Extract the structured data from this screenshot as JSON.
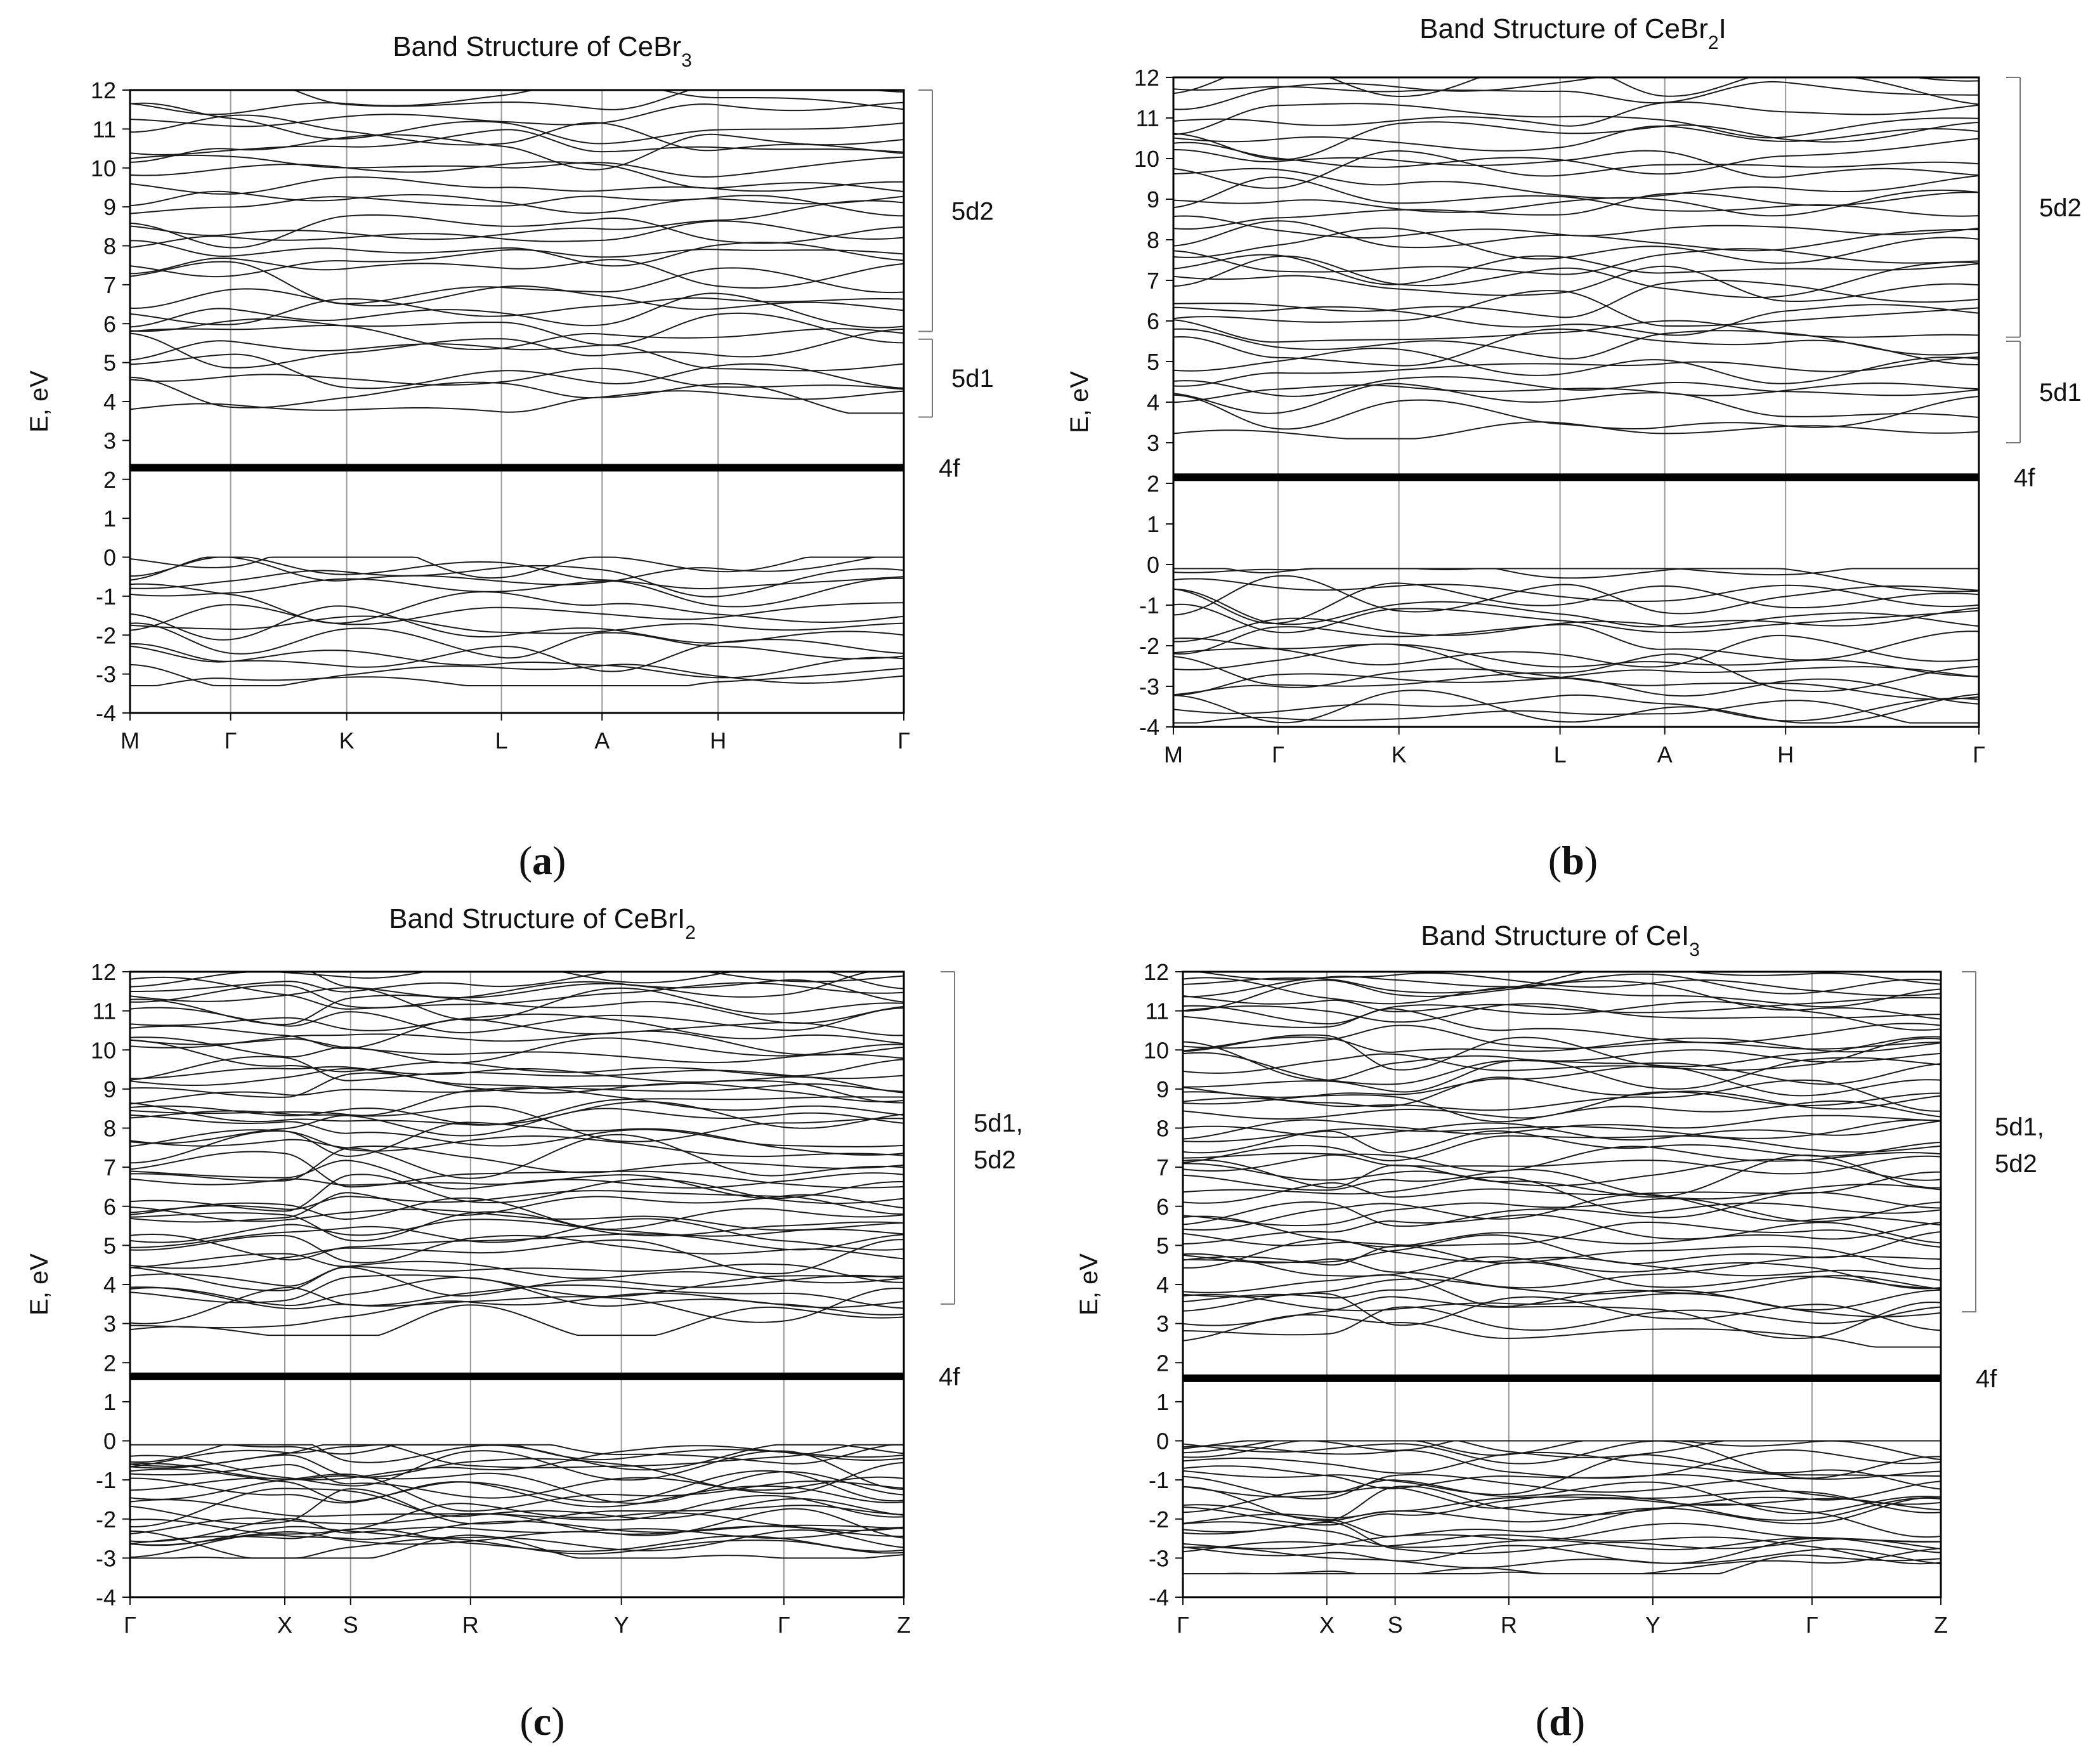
{
  "chart_data": [
    {
      "type": "line",
      "title": "Band Structure of CeBr",
      "title_sub": "3",
      "title_after": "",
      "ylabel": "E, eV",
      "ylim": [
        -4,
        12
      ],
      "yticks": [
        "-4",
        "-3",
        "-2",
        "-1",
        "0",
        "1",
        "2",
        "3",
        "4",
        "5",
        "6",
        "7",
        "8",
        "9",
        "10",
        "11",
        "12"
      ],
      "kpoints": [
        {
          "label": "M",
          "x": 0.0
        },
        {
          "label": "Γ",
          "x": 0.13
        },
        {
          "label": "K",
          "x": 0.28
        },
        {
          "label": "L",
          "x": 0.48
        },
        {
          "label": "A",
          "x": 0.61
        },
        {
          "label": "H",
          "x": 0.76
        },
        {
          "label": "Γ",
          "x": 1.0
        }
      ],
      "caption": "a",
      "f_band": {
        "label": "4f",
        "energy": 2.3
      },
      "annotations": [
        {
          "label": "5d2",
          "range": [
            5.8,
            12.0
          ]
        },
        {
          "label": "5d1",
          "range": [
            3.6,
            5.6
          ]
        }
      ],
      "conduction": {
        "min": 3.7,
        "max": 12.0,
        "count": 30,
        "seed": 11
      },
      "valence": {
        "min": -3.3,
        "max": 0.0,
        "count": 14,
        "seed": 13
      }
    },
    {
      "type": "line",
      "title": "Band Structure of CeBr",
      "title_sub": "2",
      "title_after": "I",
      "ylabel": "E, eV",
      "ylim": [
        -4,
        12
      ],
      "yticks": [
        "-4",
        "-3",
        "-2",
        "-1",
        "0",
        "1",
        "2",
        "3",
        "4",
        "5",
        "6",
        "7",
        "8",
        "9",
        "10",
        "11",
        "12"
      ],
      "kpoints": [
        {
          "label": "M",
          "x": 0.0
        },
        {
          "label": "Γ",
          "x": 0.13
        },
        {
          "label": "K",
          "x": 0.28
        },
        {
          "label": "L",
          "x": 0.48
        },
        {
          "label": "A",
          "x": 0.61
        },
        {
          "label": "H",
          "x": 0.76
        },
        {
          "label": "Γ",
          "x": 1.0
        }
      ],
      "caption": "b",
      "f_band": {
        "label": "4f",
        "energy": 2.15
      },
      "annotations": [
        {
          "label": "5d2",
          "range": [
            5.6,
            12.0
          ]
        },
        {
          "label": "5d1",
          "range": [
            3.0,
            5.5
          ]
        }
      ],
      "conduction": {
        "min": 3.1,
        "max": 12.0,
        "count": 34,
        "seed": 21
      },
      "valence": {
        "min": -3.9,
        "max": -0.1,
        "count": 18,
        "seed": 23
      }
    },
    {
      "type": "line",
      "title": "Band Structure of CeBrI",
      "title_sub": "2",
      "title_after": "",
      "ylabel": "E, eV",
      "ylim": [
        -4,
        12
      ],
      "yticks": [
        "-4",
        "-3",
        "-2",
        "-1",
        "0",
        "1",
        "2",
        "3",
        "4",
        "5",
        "6",
        "7",
        "8",
        "9",
        "10",
        "11",
        "12"
      ],
      "kpoints": [
        {
          "label": "Γ",
          "x": 0.0
        },
        {
          "label": "X",
          "x": 0.2
        },
        {
          "label": "S",
          "x": 0.285
        },
        {
          "label": "R",
          "x": 0.44
        },
        {
          "label": "Y",
          "x": 0.635
        },
        {
          "label": "Γ",
          "x": 0.845
        },
        {
          "label": "Z",
          "x": 1.0
        }
      ],
      "caption": "c",
      "f_band": {
        "label": "4f",
        "energy": 1.65
      },
      "annotations": [
        {
          "label": "5d1,",
          "label2": "5d2",
          "range": [
            3.5,
            12.0
          ]
        }
      ],
      "conduction": {
        "min": 2.7,
        "max": 12.0,
        "count": 52,
        "seed": 31
      },
      "valence": {
        "min": -3.0,
        "max": -0.1,
        "count": 24,
        "seed": 33
      }
    },
    {
      "type": "line",
      "title": "Band Structure of CeI",
      "title_sub": "3",
      "title_after": "",
      "ylabel": "E, eV",
      "ylim": [
        -4,
        12
      ],
      "yticks": [
        "-4",
        "-3",
        "-2",
        "-1",
        "0",
        "1",
        "2",
        "3",
        "4",
        "5",
        "6",
        "7",
        "8",
        "9",
        "10",
        "11",
        "12"
      ],
      "kpoints": [
        {
          "label": "Γ",
          "x": 0.0
        },
        {
          "label": "X",
          "x": 0.19
        },
        {
          "label": "S",
          "x": 0.28
        },
        {
          "label": "R",
          "x": 0.43
        },
        {
          "label": "Y",
          "x": 0.62
        },
        {
          "label": "Γ",
          "x": 0.83
        },
        {
          "label": "Z",
          "x": 1.0
        }
      ],
      "caption": "d",
      "f_band": {
        "label": "4f",
        "energy": 1.6
      },
      "annotations": [
        {
          "label": "5d1,",
          "label2": "5d2",
          "range": [
            3.3,
            12.0
          ]
        }
      ],
      "conduction": {
        "min": 2.4,
        "max": 12.0,
        "count": 52,
        "seed": 41
      },
      "valence": {
        "min": -3.4,
        "max": 0.0,
        "count": 24,
        "seed": 43
      }
    }
  ]
}
